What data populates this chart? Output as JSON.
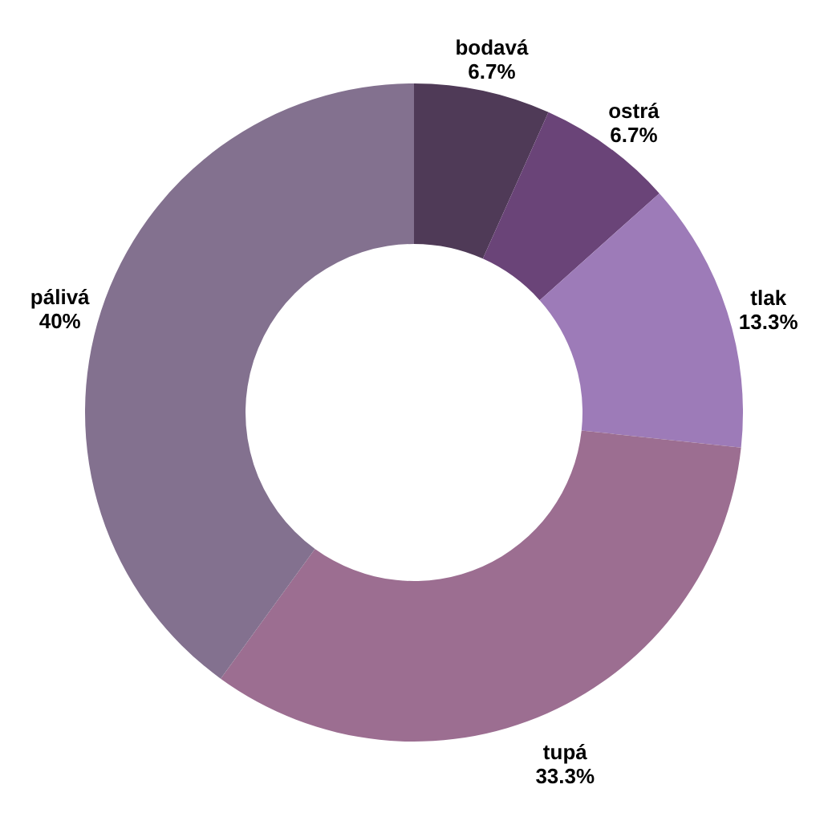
{
  "chart_data": {
    "type": "donut",
    "categories": [
      "bodavá",
      "ostrá",
      "tlak",
      "tupá",
      "pálivá"
    ],
    "values": [
      6.7,
      6.7,
      13.3,
      33.3,
      40
    ],
    "colors": [
      "#4f3a57",
      "#6a4478",
      "#9d7bb8",
      "#9c6e91",
      "#83718f"
    ],
    "value_labels": [
      "6.7%",
      "6.7%",
      "13.3%",
      "33.3%",
      "40%"
    ]
  }
}
